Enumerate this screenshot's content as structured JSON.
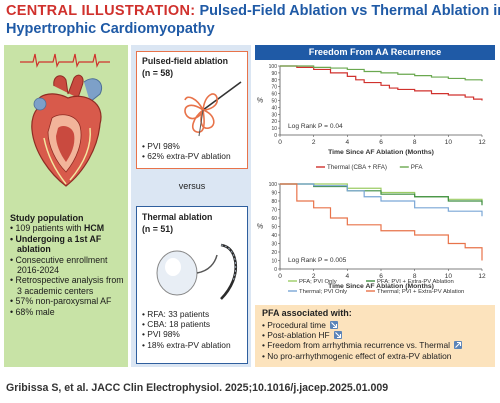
{
  "header": {
    "kicker": "CENTRAL ILLUSTRATION:",
    "title_rest": "Pulsed-Field Ablation vs Thermal Ablation in",
    "title_line2": "Hypertrophic Cardiomyopathy"
  },
  "study": {
    "heading": "Study population",
    "items": [
      {
        "pre": "109 patients with ",
        "bold": "HCM",
        "post": ""
      },
      {
        "pre": "",
        "bold": "Undergoing a 1st AF ablation",
        "post": ""
      },
      {
        "pre": "Consecutive enrollment 2016-2024",
        "bold": "",
        "post": ""
      },
      {
        "pre": "Retrospective analysis from 3 academic centers",
        "bold": "",
        "post": ""
      },
      {
        "pre": "57% non-paroxysmal AF",
        "bold": "",
        "post": ""
      },
      {
        "pre": "68% male",
        "bold": "",
        "post": ""
      }
    ]
  },
  "pfa": {
    "title": "Pulsed-field ablation",
    "n": "(n = 58)",
    "items": [
      "PVI 98%",
      "62% extra-PV ablation"
    ]
  },
  "versus": "versus",
  "thermal": {
    "title": "Thermal ablation",
    "n": "(n = 51)",
    "items": [
      "RFA: 33 patients",
      "CBA: 18 patients",
      "PVI 98%",
      "18% extra-PV ablation"
    ]
  },
  "chart_header": "Freedom From AA Recurrence",
  "pfa_assoc": {
    "heading": "PFA associated with:",
    "items": [
      {
        "text": "Procedural time",
        "icon": "down-arrow-icon"
      },
      {
        "text": "Post-ablation HF",
        "icon": "down-arrow-icon"
      },
      {
        "text": "Freedom from arrhythmia recurrence vs. Thermal",
        "icon": "up-arrow-icon"
      },
      {
        "text": "No pro-arrhythmogenic effect of extra-PV ablation",
        "icon": ""
      }
    ]
  },
  "citation": "Gribissa S, et al. JACC Clin Electrophysiol. 2025;10.1016/j.jacep.2025.01.009",
  "colors": {
    "pfa": "#6aa84f",
    "thermal": "#d0312d",
    "pfa_extra": "#3e8e41",
    "thermal_extra": "#e8734a",
    "thermal_pvi": "#7aa6d6",
    "pfa_pvi": "#9ccc65",
    "brand": "#1f5aa6"
  },
  "chart_data": [
    {
      "type": "line",
      "xlabel": "Time Since AF Ablation (Months)",
      "ylabel": "%",
      "xlim": [
        0,
        12
      ],
      "ylim": [
        0,
        100
      ],
      "xticks": [
        0,
        2,
        4,
        6,
        8,
        10,
        12
      ],
      "yticks": [
        0,
        10,
        20,
        30,
        40,
        50,
        60,
        70,
        80,
        90,
        100
      ],
      "annotation": "Log Rank P = 0.04",
      "legend_position": "bottom",
      "series": [
        {
          "name": "Thermal (CBA + RFA)",
          "color_key": "thermal",
          "points": [
            [
              0,
              100
            ],
            [
              1,
              98
            ],
            [
              2,
              95
            ],
            [
              3,
              90
            ],
            [
              4,
              85
            ],
            [
              4.5,
              80
            ],
            [
              5,
              76
            ],
            [
              6,
              72
            ],
            [
              6.5,
              68
            ],
            [
              7,
              66
            ],
            [
              8,
              64
            ],
            [
              9,
              60
            ],
            [
              10,
              58
            ],
            [
              11,
              55
            ],
            [
              11.5,
              52
            ],
            [
              12,
              50
            ]
          ]
        },
        {
          "name": "PFA",
          "color_key": "pfa",
          "points": [
            [
              0,
              100
            ],
            [
              1,
              100
            ],
            [
              2,
              98
            ],
            [
              3,
              97
            ],
            [
              4,
              95
            ],
            [
              5,
              92
            ],
            [
              6,
              90
            ],
            [
              7,
              88
            ],
            [
              8,
              86
            ],
            [
              9,
              84
            ],
            [
              10,
              82
            ],
            [
              11,
              80
            ],
            [
              12,
              78
            ]
          ]
        }
      ]
    },
    {
      "type": "line",
      "xlabel": "Time Since AF Ablation (Months)",
      "ylabel": "%",
      "xlim": [
        0,
        12
      ],
      "ylim": [
        0,
        100
      ],
      "xticks": [
        0,
        2,
        4,
        6,
        8,
        10,
        12
      ],
      "yticks": [
        0,
        10,
        20,
        30,
        40,
        50,
        60,
        70,
        80,
        90,
        100
      ],
      "annotation": "Log Rank P = 0.005",
      "legend_position": "bottom",
      "series": [
        {
          "name": "PFA; PVI Only",
          "color_key": "pfa_pvi",
          "points": [
            [
              0,
              100
            ],
            [
              2,
              100
            ],
            [
              4,
              95
            ],
            [
              6,
              90
            ],
            [
              8,
              85
            ],
            [
              10,
              82
            ],
            [
              12,
              78
            ]
          ]
        },
        {
          "name": "PFA; PVI + Extra-PV Ablation",
          "color_key": "pfa_extra",
          "points": [
            [
              0,
              100
            ],
            [
              2,
              97
            ],
            [
              4,
              92
            ],
            [
              6,
              88
            ],
            [
              8,
              85
            ],
            [
              10,
              80
            ],
            [
              12,
              75
            ]
          ]
        },
        {
          "name": "Thermal; PVI Only",
          "color_key": "thermal_pvi",
          "points": [
            [
              0,
              100
            ],
            [
              2,
              98
            ],
            [
              4,
              92
            ],
            [
              5,
              85
            ],
            [
              6,
              80
            ],
            [
              8,
              72
            ],
            [
              10,
              68
            ],
            [
              12,
              62
            ]
          ]
        },
        {
          "name": "Thermal; PVI + Extra-PV Ablation",
          "color_key": "thermal_extra",
          "points": [
            [
              0,
              100
            ],
            [
              1,
              80
            ],
            [
              2,
              72
            ],
            [
              3,
              60
            ],
            [
              4,
              52
            ],
            [
              6,
              45
            ],
            [
              8,
              40
            ],
            [
              10,
              30
            ],
            [
              11,
              25
            ],
            [
              12,
              10
            ]
          ]
        }
      ]
    }
  ]
}
